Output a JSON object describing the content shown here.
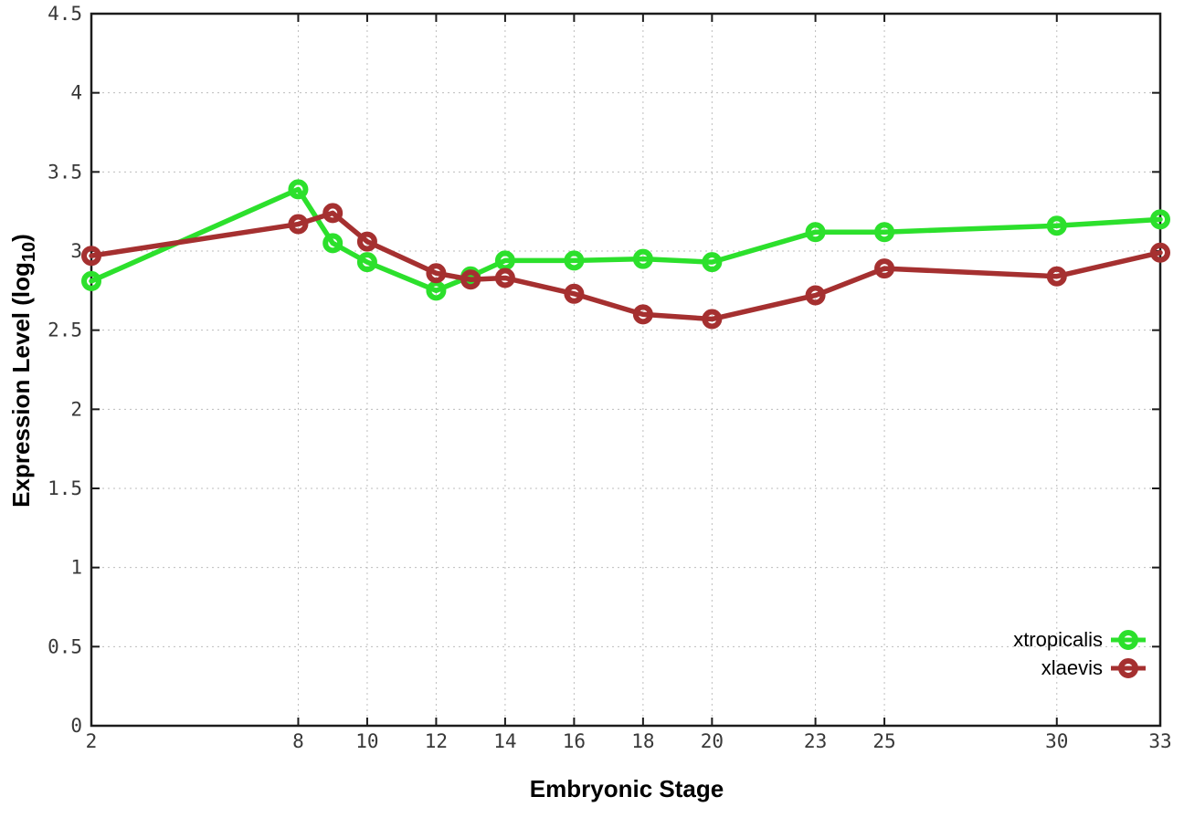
{
  "chart_data": {
    "type": "line",
    "xlabel": "Embryonic Stage",
    "ylabel": "Expression Level (log10)",
    "ylabel_parts": {
      "prefix": "Expression Level (log",
      "subscript": "10",
      "suffix": ")"
    },
    "x": [
      2,
      8,
      9,
      10,
      12,
      13,
      14,
      16,
      18,
      20,
      23,
      25,
      30,
      33
    ],
    "xticks": [
      2,
      8,
      10,
      12,
      14,
      16,
      18,
      20,
      23,
      25,
      30,
      33
    ],
    "xtick_labels": [
      "2",
      "8",
      "10",
      "12",
      "14",
      "16",
      "18",
      "20",
      "23",
      "25",
      "30",
      "33"
    ],
    "yticks": [
      0,
      0.5,
      1,
      1.5,
      2,
      2.5,
      3,
      3.5,
      4,
      4.5
    ],
    "ytick_labels": [
      "0",
      "0.5",
      "1",
      "1.5",
      "2",
      "2.5",
      "3",
      "3.5",
      "4",
      "4.5"
    ],
    "xlim": [
      2,
      33
    ],
    "ylim": [
      0,
      4.5
    ],
    "grid": true,
    "legend_position": "bottom-right",
    "series": [
      {
        "name": "xtropicalis",
        "color": "#2ce02c",
        "values": [
          2.81,
          3.39,
          3.05,
          2.93,
          2.75,
          2.84,
          2.94,
          2.94,
          2.95,
          2.93,
          3.12,
          3.12,
          3.16,
          3.2
        ]
      },
      {
        "name": "xlaevis",
        "color": "#a53030",
        "values": [
          2.97,
          3.17,
          3.24,
          3.06,
          2.86,
          2.82,
          2.83,
          2.73,
          2.6,
          2.57,
          2.72,
          2.89,
          2.84,
          2.99
        ]
      }
    ]
  },
  "colors": {
    "background": "#ffffff",
    "grid": "#bdbdbd",
    "axis": "#1c1c1c",
    "tick_label": "#383838",
    "text": "#000000"
  }
}
